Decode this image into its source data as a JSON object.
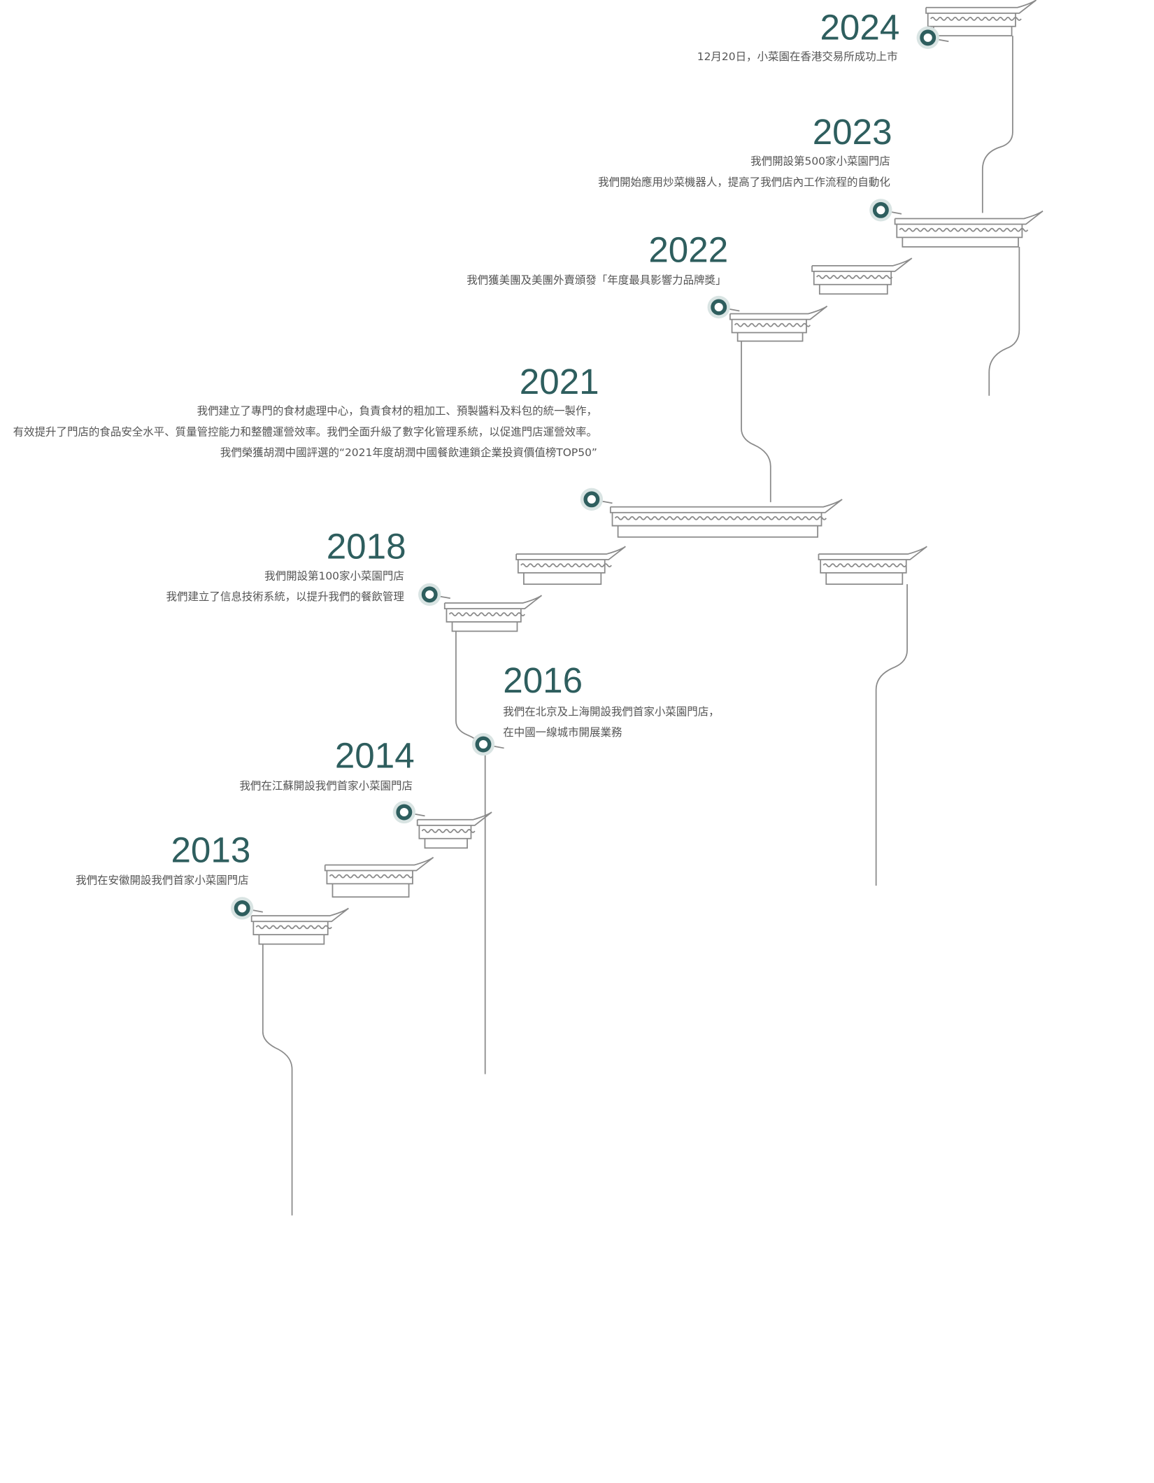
{
  "events": [
    {
      "year": "2024",
      "lines": [
        "12月20日，小菜園在香港交易所成功上市"
      ]
    },
    {
      "year": "2023",
      "lines": [
        "我們開設第500家小菜園門店",
        "我們開始應用炒菜機器人，提高了我們店內工作流程的自動化"
      ]
    },
    {
      "year": "2022",
      "lines": [
        "我們獲美團及美團外賣頒發「年度最具影響力品牌獎」"
      ]
    },
    {
      "year": "2021",
      "lines": [
        "我們建立了專門的食材處理中心，負責食材的粗加工、預製醬料及料包的統一製作，",
        "有效提升了門店的食品安全水平、質量管控能力和整體運營效率。我們全面升級了數字化管理系統，以促進門店運營效率。",
        "我們榮獲胡潤中國評選的“2021年度胡潤中國餐飲連鎖企業投資價值榜TOP50”"
      ]
    },
    {
      "year": "2018",
      "lines": [
        "我們開設第100家小菜園門店",
        "我們建立了信息技術系統，以提升我們的餐飲管理"
      ]
    },
    {
      "year": "2016",
      "lines": [
        "我們在北京及上海開設我們首家小菜園門店，",
        "在中國一線城市開展業務"
      ]
    },
    {
      "year": "2014",
      "lines": [
        "我們在江蘇開設我們首家小菜園門店"
      ]
    },
    {
      "year": "2013",
      "lines": [
        "我們在安徽開設我們首家小菜園門店"
      ]
    }
  ]
}
